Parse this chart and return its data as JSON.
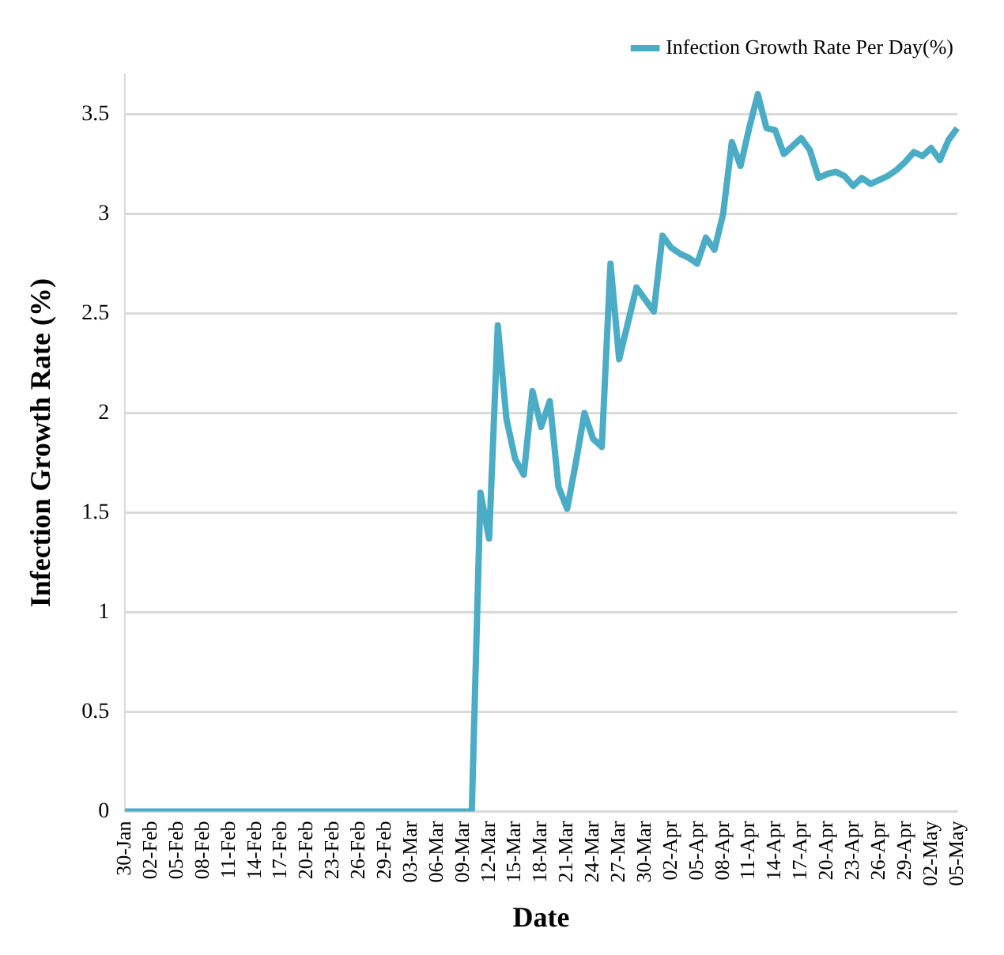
{
  "chart_data": {
    "type": "line",
    "xlabel": "Date",
    "ylabel": "Infection Growth Rate (%)",
    "categories": [
      "30-Jan",
      null,
      null,
      "02-Feb",
      null,
      null,
      "05-Feb",
      null,
      null,
      "08-Feb",
      null,
      null,
      "11-Feb",
      null,
      null,
      "14-Feb",
      null,
      null,
      "17-Feb",
      null,
      null,
      "20-Feb",
      null,
      null,
      "23-Feb",
      null,
      null,
      "26-Feb",
      null,
      null,
      "29-Feb",
      null,
      null,
      "03-Mar",
      null,
      null,
      "06-Mar",
      null,
      null,
      "09-Mar",
      null,
      null,
      "12-Mar",
      null,
      null,
      "15-Mar",
      null,
      null,
      "18-Mar",
      null,
      null,
      "21-Mar",
      null,
      null,
      "24-Mar",
      null,
      null,
      "27-Mar",
      null,
      null,
      "30-Mar",
      null,
      null,
      "02-Apr",
      null,
      null,
      "05-Apr",
      null,
      null,
      "08-Apr",
      null,
      null,
      "11-Apr",
      null,
      null,
      "14-Apr",
      null,
      null,
      "17-Apr",
      null,
      null,
      "20-Apr",
      null,
      null,
      "23-Apr",
      null,
      null,
      "26-Apr",
      null,
      null,
      "29-Apr",
      null,
      null,
      "02-May",
      null,
      null,
      "05-May"
    ],
    "series": [
      {
        "name": "Infection Growth Rate Per Day(%)",
        "color": "#4bacc6",
        "values": [
          0,
          0,
          0,
          0,
          0,
          0,
          0,
          0,
          0,
          0,
          0,
          0,
          0,
          0,
          0,
          0,
          0,
          0,
          0,
          0,
          0,
          0,
          0,
          0,
          0,
          0,
          0,
          0,
          0,
          0,
          0,
          0,
          0,
          0,
          0,
          0,
          0,
          0,
          0,
          0,
          0,
          1.6,
          1.37,
          2.44,
          1.97,
          1.77,
          1.69,
          2.11,
          1.93,
          2.06,
          1.63,
          1.52,
          1.75,
          2.0,
          1.87,
          1.83,
          2.75,
          2.27,
          2.45,
          2.63,
          2.57,
          2.51,
          2.89,
          2.83,
          2.8,
          2.78,
          2.75,
          2.88,
          2.82,
          3.0,
          3.36,
          3.24,
          3.43,
          3.6,
          3.43,
          3.42,
          3.3,
          3.34,
          3.38,
          3.32,
          3.18,
          3.2,
          3.21,
          3.19,
          3.14,
          3.18,
          3.15,
          3.17,
          3.19,
          3.22,
          3.26,
          3.31,
          3.29,
          3.33,
          3.27,
          3.37,
          3.43
        ]
      }
    ],
    "ylim": [
      0,
      3.7
    ],
    "yticks": [
      0,
      0.5,
      1,
      1.5,
      2,
      2.5,
      3,
      3.5
    ],
    "grid": "y",
    "legend": "top right",
    "marker": "none",
    "line_style": "solid"
  }
}
